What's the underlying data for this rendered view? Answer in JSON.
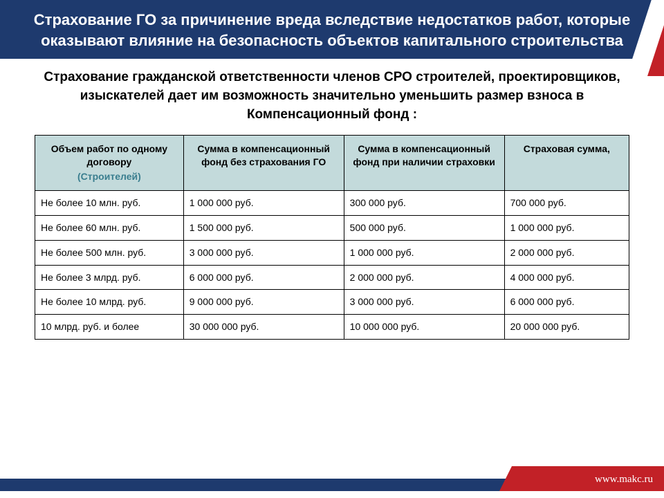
{
  "colors": {
    "title_band": "#1e3a6e",
    "accent_red": "#c22127",
    "table_header_bg": "#c3dadb",
    "table_border": "#000000",
    "subheading_teal": "#3a7e8f",
    "text": "#000000",
    "title_text": "#ffffff",
    "background": "#ffffff"
  },
  "title": "Страхование ГО за причинение вреда вследствие недостатков работ, которые оказывают влияние на безопасность объектов капитального строительства",
  "subtitle": "Страхование гражданской ответственности членов СРО строителей, проектировщиков, изыскателей дает им возможность значительно уменьшить размер взноса в Компенсационный фонд :",
  "table": {
    "columns": [
      {
        "label": "Объем работ по одному договору",
        "sub": "(Строителей)"
      },
      {
        "label": "Сумма в компенсационный фонд без страхования ГО"
      },
      {
        "label": "Сумма в компенсационный фонд при наличии страховки"
      },
      {
        "label": "Страховая сумма,"
      }
    ],
    "rows": [
      [
        "Не более 10 млн. руб.",
        "1 000 000 руб.",
        "300 000 руб.",
        "700 000 руб."
      ],
      [
        "Не более 60 млн. руб.",
        "1 500 000 руб.",
        "500 000 руб.",
        "1 000 000 руб."
      ],
      [
        "Не более 500 млн. руб.",
        "3 000 000 руб.",
        "1 000 000 руб.",
        "2 000 000 руб."
      ],
      [
        "Не более 3 млрд. руб.",
        "6 000 000 руб.",
        " 2 000 000 руб.",
        "4 000 000 руб."
      ],
      [
        "Не более 10 млрд. руб.",
        "9 000 000 руб.",
        " 3 000 000 руб.",
        "6 000 000 руб."
      ],
      [
        "10 млрд. руб. и более",
        "30 000 000 руб.",
        "10 000 000 руб.",
        "20 000 000 руб."
      ]
    ]
  },
  "footer": {
    "url": "www.makc.ru"
  }
}
